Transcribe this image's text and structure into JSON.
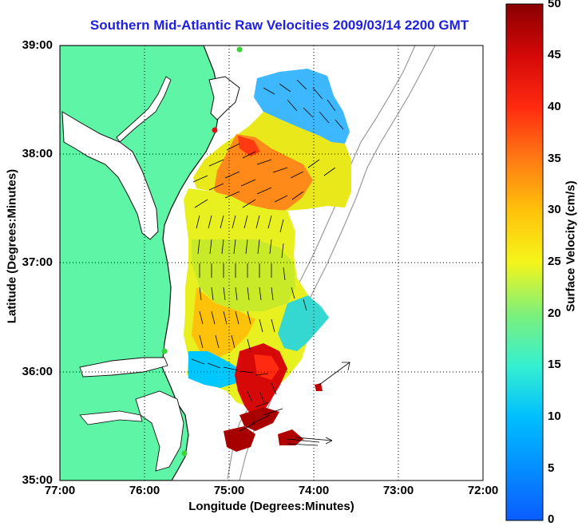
{
  "title": "Southern Mid-Atlantic Raw Velocities 2009/03/14 2200 GMT",
  "xlabel": "Longitude (Degrees:Minutes)",
  "ylabel": "Latitude (Degrees:Minutes)",
  "colorbar_label": "Surface Velocity (cm/s)",
  "x_ticks": [
    "77:00",
    "76:00",
    "75:00",
    "74:00",
    "73:00",
    "72:00"
  ],
  "y_ticks": [
    "39:00",
    "38:00",
    "37:00",
    "36:00",
    "35:00"
  ],
  "colorbar_ticks": [
    "50",
    "45",
    "40",
    "35",
    "30",
    "25",
    "20",
    "15",
    "10",
    "5",
    "0"
  ],
  "colors": {
    "land": "#5ff5a6",
    "coast": "#101010",
    "grid": "#000000",
    "bathymetry": "#9a9a9a",
    "title": "#1f1fe0",
    "station_marker": "#3ad33a",
    "station_marker_red": "#e01010"
  },
  "chart_data": {
    "type": "heatmap",
    "title": "Southern Mid-Atlantic Raw Velocities 2009/03/14 2200 GMT",
    "xlabel": "Longitude (Degrees:Minutes)",
    "ylabel": "Latitude (Degrees:Minutes)",
    "xlim": [
      -77,
      -72
    ],
    "ylim": [
      35,
      39
    ],
    "colorbar": {
      "label": "Surface Velocity (cm/s)",
      "range": [
        0,
        50
      ]
    },
    "grid": true
  }
}
